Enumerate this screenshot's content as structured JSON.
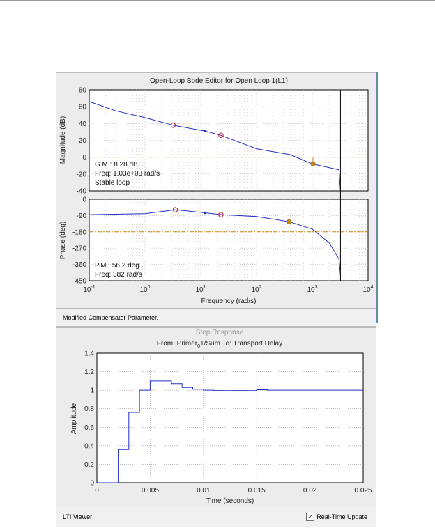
{
  "bode_editor": {
    "title": "Open-Loop Bode Editor for Open Loop 1(L1)",
    "status": "Modified Compensator Parameter.",
    "magnitude": {
      "ylabel": "Magnitude (dB)",
      "yticks": [
        "80",
        "60",
        "40",
        "20",
        "0",
        "-20",
        "-40"
      ],
      "gm_line": "G.M.: 8.28 dB",
      "freq_line": "Freq: 1.03e+03 rad/s",
      "stability": "Stable loop"
    },
    "phase": {
      "ylabel": "Phase (deg)",
      "yticks": [
        "0",
        "-90",
        "-180",
        "-270",
        "-360",
        "-450"
      ],
      "pm_line": "P.M.: 56.2 deg",
      "freq_line": "Freq: 382 rad/s"
    },
    "xaxis": {
      "label": "Frequency (rad/s)",
      "ticks": [
        {
          "base": "10",
          "exp": "-1"
        },
        {
          "base": "10",
          "exp": "0"
        },
        {
          "base": "10",
          "exp": "1"
        },
        {
          "base": "10",
          "exp": "2"
        },
        {
          "base": "10",
          "exp": "3"
        },
        {
          "base": "10",
          "exp": "4"
        }
      ]
    },
    "colors": {
      "curve": "#1f2fc8",
      "margin_line": "#c08a10",
      "marker": "#c8102e",
      "margin_marker": "#c48a14"
    }
  },
  "lti_viewer": {
    "title_partial": "Step Response",
    "subtitle_from": "From: Primer",
    "subtitle_sub": "0",
    "subtitle_rest": "1/Sum  To: Transport Delay",
    "ylabel": "Amplitude",
    "xlabel": "Time (seconds)",
    "yticks": [
      "1.4",
      "1.2",
      "1",
      "0.8",
      "0.6",
      "0.4",
      "0.2",
      "0"
    ],
    "xticks": [
      "0",
      "0.005",
      "0.01",
      "0.015",
      "0.02",
      "0.025"
    ],
    "status": "LTI Viewer",
    "realtime_label": "Real-Time Update",
    "realtime_checked": true
  },
  "chart_data": [
    {
      "type": "line",
      "title": "Open-Loop Bode Editor for Open Loop 1(L1)",
      "xlabel": "Frequency (rad/s)",
      "ylabel": "Magnitude (dB)",
      "xscale": "log",
      "xlim": [
        0.1,
        10000
      ],
      "ylim": [
        -40,
        80
      ],
      "grid": true,
      "x": [
        0.1,
        0.3,
        1,
        3.2,
        12,
        23,
        100,
        400,
        1000,
        3000,
        3200
      ],
      "y": [
        66,
        55,
        47,
        38,
        31,
        26,
        10,
        3,
        -8,
        -15,
        -40
      ],
      "reference_line_y": 0,
      "markers": [
        {
          "x": 3.2,
          "y": 38,
          "style": "open-circle"
        },
        {
          "x": 12,
          "y": 31,
          "style": "dot"
        },
        {
          "x": 23,
          "y": 26,
          "style": "open-circle"
        },
        {
          "x": 1030,
          "y": -8,
          "style": "margin"
        }
      ],
      "vertical_line_x": 3200
    },
    {
      "type": "line",
      "xlabel": "Frequency (rad/s)",
      "ylabel": "Phase (deg)",
      "xscale": "log",
      "xlim": [
        0.1,
        10000
      ],
      "ylim": [
        -450,
        0
      ],
      "grid": true,
      "x": [
        0.1,
        1,
        3.5,
        12,
        23,
        100,
        382,
        1000,
        2000,
        3000,
        3200
      ],
      "y": [
        -85,
        -80,
        -58,
        -75,
        -85,
        -95,
        -124,
        -165,
        -240,
        -330,
        -420
      ],
      "reference_line_y": -180,
      "markers": [
        {
          "x": 3.5,
          "y": -58,
          "style": "open-circle"
        },
        {
          "x": 12,
          "y": -75,
          "style": "dot"
        },
        {
          "x": 23,
          "y": -85,
          "style": "open-circle"
        },
        {
          "x": 382,
          "y": -124,
          "style": "margin"
        }
      ],
      "vertical_line_x": 3200
    },
    {
      "type": "line",
      "title": "Step Response",
      "xlabel": "Time (seconds)",
      "ylabel": "Amplitude",
      "xlim": [
        0,
        0.025
      ],
      "ylim": [
        0,
        1.4
      ],
      "grid": true,
      "x": [
        0,
        0.002,
        0.002,
        0.003,
        0.003,
        0.004,
        0.004,
        0.005,
        0.005,
        0.007,
        0.007,
        0.008,
        0.008,
        0.009,
        0.009,
        0.01,
        0.01,
        0.011,
        0.011,
        0.015,
        0.015,
        0.016,
        0.016,
        0.025
      ],
      "y": [
        0,
        0,
        0.36,
        0.36,
        0.76,
        0.76,
        1.0,
        1.0,
        1.1,
        1.1,
        1.07,
        1.07,
        1.03,
        1.03,
        1.01,
        1.01,
        1.0,
        1.0,
        0.995,
        0.995,
        1.005,
        1.005,
        1.0,
        1.0
      ]
    }
  ]
}
